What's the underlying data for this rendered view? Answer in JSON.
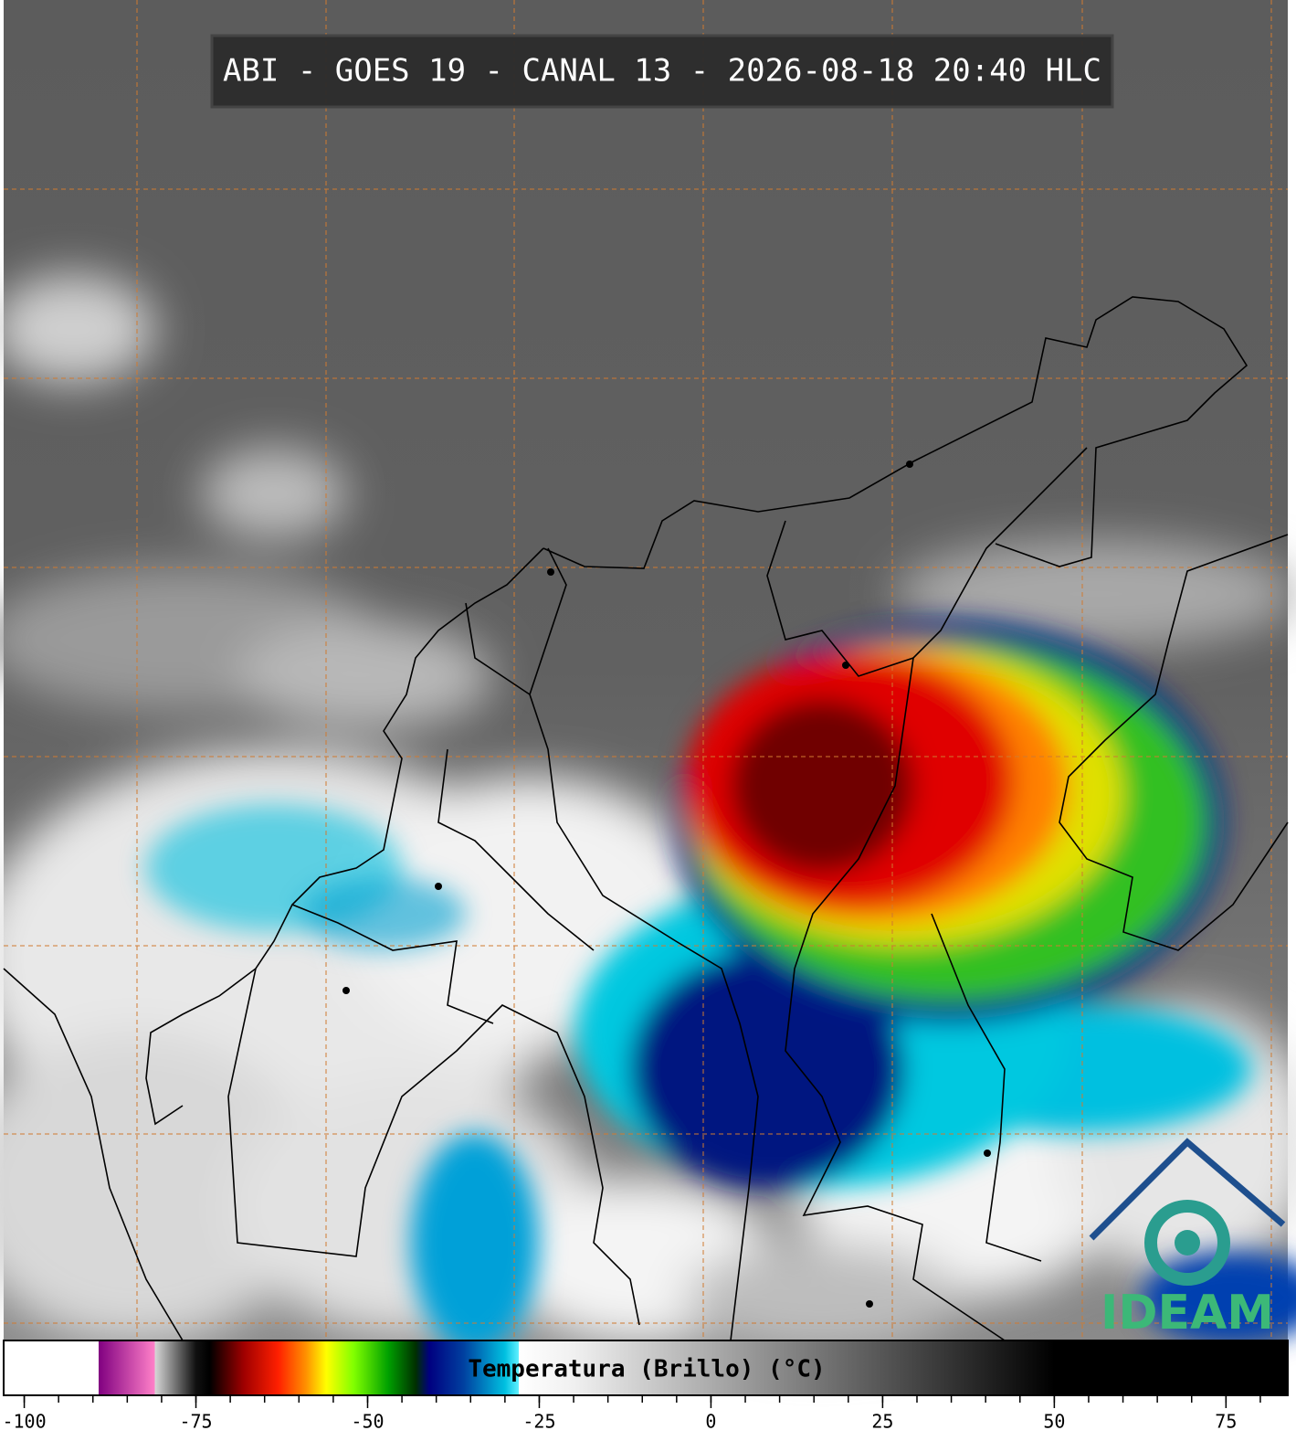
{
  "header": {
    "title": "ABI - GOES 19 - CANAL 13 - 2026-08-18 20:40 HLC"
  },
  "logo": {
    "text": "IDEAM"
  },
  "colorbar": {
    "label": "Temperatura (Brillo) (°C)",
    "xlim": [
      -103,
      84
    ],
    "ticks": [
      -100,
      -75,
      -50,
      -25,
      0,
      25,
      50,
      75
    ],
    "minor_ticks": [
      -100,
      -95,
      -90,
      -85,
      -80,
      -75,
      -70,
      -65,
      -60,
      -55,
      -50,
      -45,
      -40,
      -35,
      -30,
      -25,
      -20,
      -15,
      -10,
      -5,
      0,
      5,
      10,
      15,
      20,
      25,
      30,
      35,
      40,
      45,
      50,
      55,
      60,
      65,
      70,
      75,
      80
    ],
    "stops": [
      {
        "value": -103,
        "color": "#ffffff"
      },
      {
        "value": -89.2,
        "color": "#ffffff"
      },
      {
        "value": -89.2,
        "color": "#800080"
      },
      {
        "value": -81,
        "color": "#ff80c8"
      },
      {
        "value": -81,
        "color": "#d8d8d8"
      },
      {
        "value": -75,
        "color": "#101010"
      },
      {
        "value": -73,
        "color": "#000000"
      },
      {
        "value": -68,
        "color": "#a00000"
      },
      {
        "value": -63,
        "color": "#ff2000"
      },
      {
        "value": -59,
        "color": "#ff9000"
      },
      {
        "value": -56,
        "color": "#ffff00"
      },
      {
        "value": -52,
        "color": "#80ff00"
      },
      {
        "value": -47,
        "color": "#00a000"
      },
      {
        "value": -43,
        "color": "#003000"
      },
      {
        "value": -41,
        "color": "#000080"
      },
      {
        "value": -36,
        "color": "#0040a0"
      },
      {
        "value": -30,
        "color": "#00c0e0"
      },
      {
        "value": -28,
        "color": "#60f0ff"
      },
      {
        "value": -28,
        "color": "#ffffff"
      },
      {
        "value": -20,
        "color": "#f0f0f0"
      },
      {
        "value": 50,
        "color": "#000000"
      },
      {
        "value": 84,
        "color": "#000000"
      }
    ]
  }
}
